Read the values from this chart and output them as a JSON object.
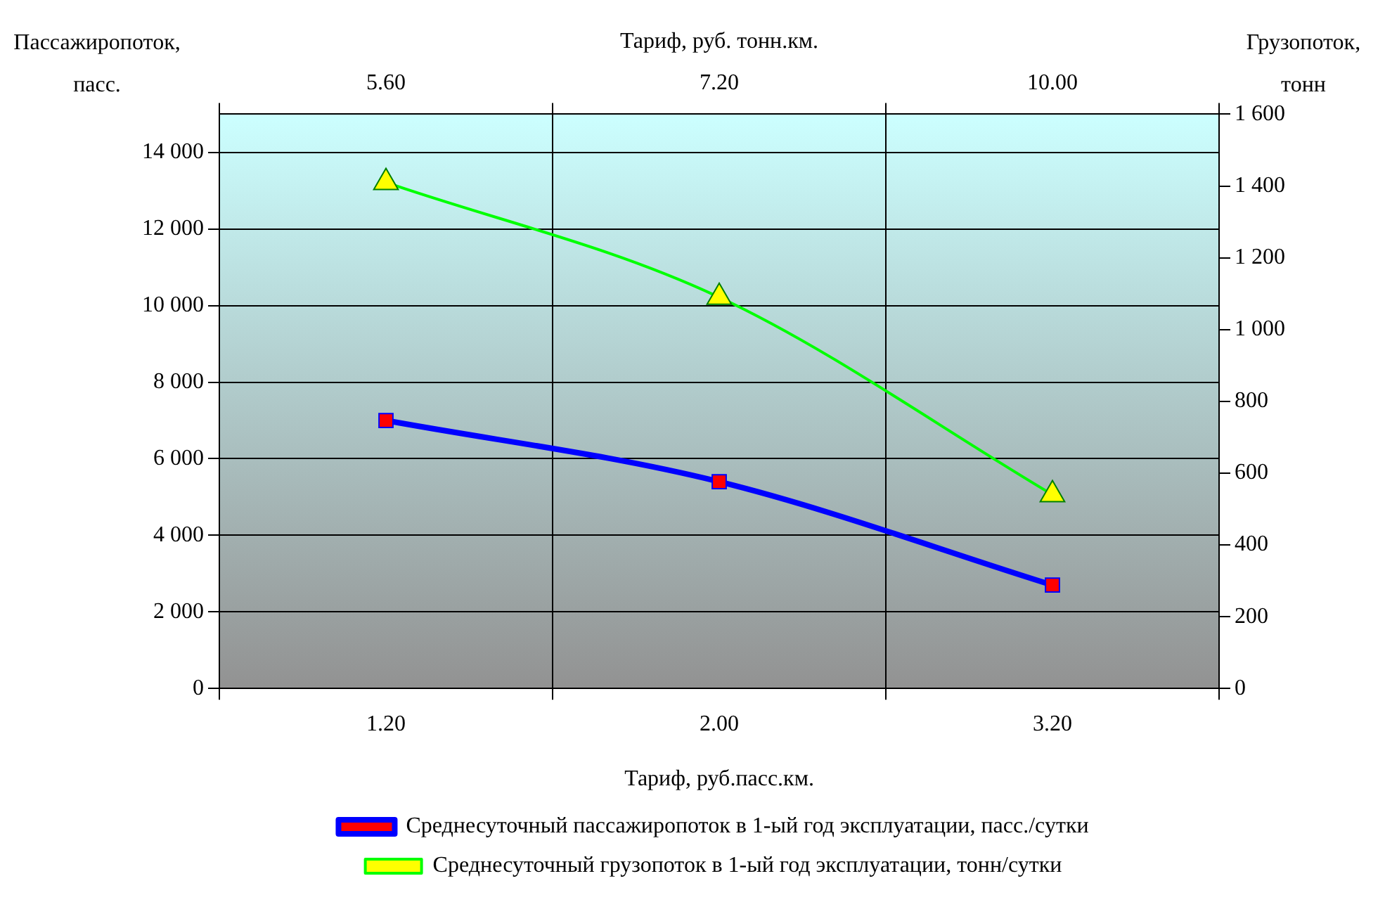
{
  "chart_data": {
    "type": "line",
    "categories": [
      "1.20",
      "2.00",
      "3.20"
    ],
    "xlabel": "Тариф, руб.пасс.км.",
    "x2label": "Тариф, руб. тонн.км.",
    "ylabel": "Пассажиропоток, пасс.",
    "y2label": "Грузопоток, тонн",
    "series": [
      {
        "name": "Среднесуточный пассажиропоток в 1-ый год эксплуатации, пасс./сутки",
        "color": "#0000ff",
        "colors": [
          "#ff0000",
          "#ff0000",
          "#ff0000"
        ],
        "marker": "square",
        "values": [
          7000,
          5400,
          2700
        ]
      },
      {
        "name": "Среднесуточный грузопоток в 1-ый год эксплуатации, тонн/сутки",
        "color": "#00ff00",
        "colors": [
          "#ffff00",
          "#ffff00",
          "#ffff00"
        ],
        "marker": "triangle",
        "axis": "y2",
        "values": [
          1410,
          1090,
          540
        ]
      }
    ],
    "ylim": [
      0,
      15000
    ],
    "yticks": [
      0,
      {
        "value": 2000,
        "label": "2 000"
      },
      {
        "value": 4000,
        "label": "4 000"
      },
      {
        "value": 6000,
        "label": "6 000"
      },
      {
        "value": 8000,
        "label": "8 000"
      },
      {
        "value": 10000,
        "label": "10 000"
      },
      {
        "value": 12000,
        "label": "12 000"
      },
      {
        "value": 14000,
        "label": "14 000"
      }
    ],
    "annotations": [
      "5.60",
      "7.20",
      "10.00"
    ],
    "y2lim": [
      0,
      1600
    ],
    "y2ticks": [
      0,
      200,
      400,
      600,
      800,
      {
        "value": 1000,
        "label": "1 000"
      },
      {
        "value": 1200,
        "label": "1 200"
      },
      {
        "value": 1400,
        "label": "1 400"
      },
      {
        "value": 1600,
        "label": "1 600"
      }
    ],
    "grid": true,
    "legend": "bottom"
  }
}
